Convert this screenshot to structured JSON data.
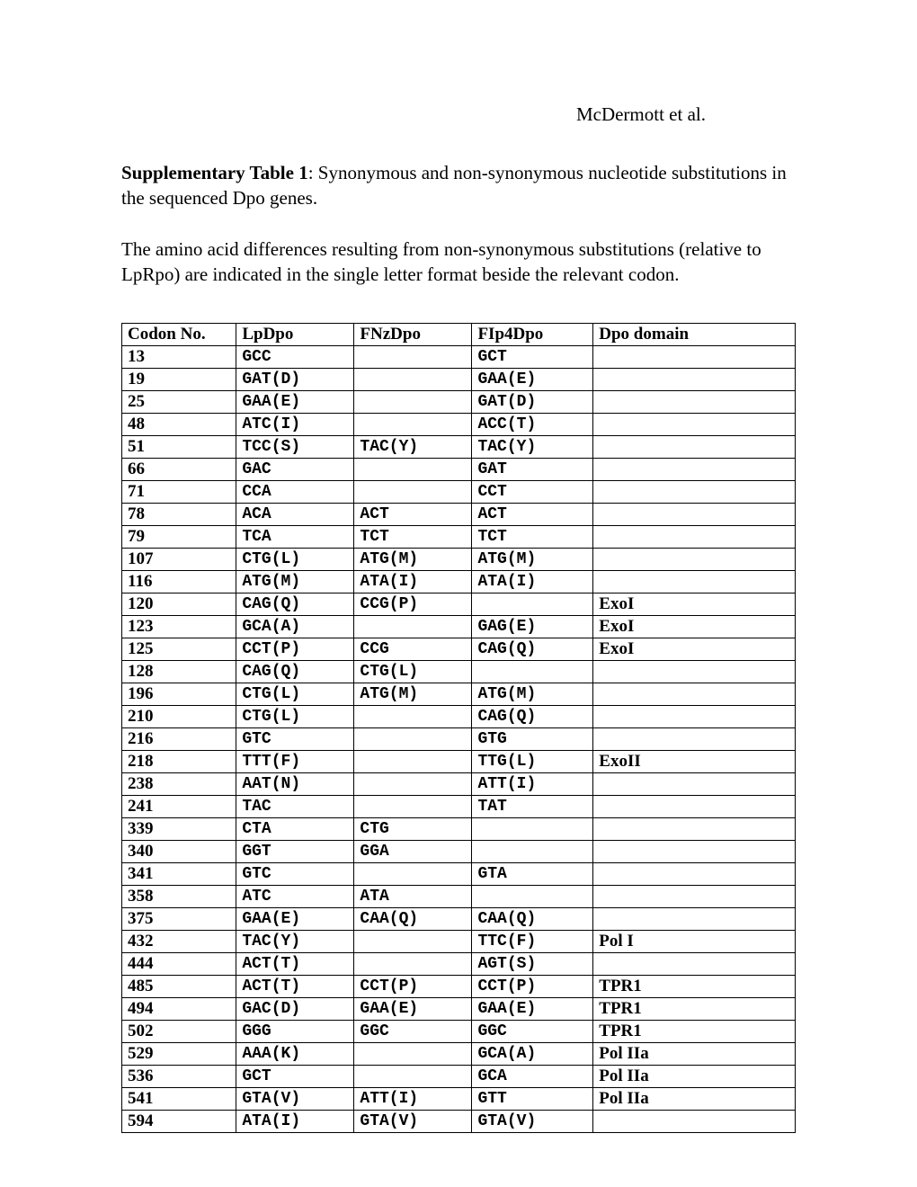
{
  "header": "McDermott et al.",
  "title_bold": "Supplementary Table 1",
  "title_rest": ": Synonymous and non-synonymous nucleotide substitutions in the sequenced Dpo genes.",
  "description": "The amino acid differences resulting from non-synonymous substitutions (relative to LpRpo) are indicated in the single letter format beside the relevant codon.",
  "table": {
    "columns": [
      "Codon No.",
      "LpDpo",
      "FNzDpo",
      "FIp4Dpo",
      "Dpo domain"
    ],
    "rows": [
      {
        "codon": "13",
        "lp": "GCC",
        "fnz": "",
        "fip4": "GCT",
        "domain": ""
      },
      {
        "codon": "19",
        "lp": "GAT(D)",
        "fnz": "",
        "fip4": "GAA(E)",
        "domain": ""
      },
      {
        "codon": "25",
        "lp": "GAA(E)",
        "fnz": "",
        "fip4": "GAT(D)",
        "domain": ""
      },
      {
        "codon": "48",
        "lp": "ATC(I)",
        "fnz": "",
        "fip4": "ACC(T)",
        "domain": ""
      },
      {
        "codon": "51",
        "lp": "TCC(S)",
        "fnz": "TAC(Y)",
        "fip4": "TAC(Y)",
        "domain": ""
      },
      {
        "codon": "66",
        "lp": "GAC",
        "fnz": "",
        "fip4": "GAT",
        "domain": ""
      },
      {
        "codon": "71",
        "lp": "CCA",
        "fnz": "",
        "fip4": "CCT",
        "domain": ""
      },
      {
        "codon": "78",
        "lp": "ACA",
        "fnz": "ACT",
        "fip4": "ACT",
        "domain": ""
      },
      {
        "codon": "79",
        "lp": "TCA",
        "fnz": "TCT",
        "fip4": "TCT",
        "domain": ""
      },
      {
        "codon": "107",
        "lp": "CTG(L)",
        "fnz": "ATG(M)",
        "fip4": "ATG(M)",
        "domain": ""
      },
      {
        "codon": "116",
        "lp": "ATG(M)",
        "fnz": "ATA(I)",
        "fip4": "ATA(I)",
        "domain": ""
      },
      {
        "codon": "120",
        "lp": "CAG(Q)",
        "fnz": "CCG(P)",
        "fip4": "",
        "domain": "ExoI"
      },
      {
        "codon": "123",
        "lp": "GCA(A)",
        "fnz": "",
        "fip4": "GAG(E)",
        "domain": "ExoI"
      },
      {
        "codon": "125",
        "lp": "CCT(P)",
        "fnz": "CCG",
        "fip4": "CAG(Q)",
        "domain": "ExoI"
      },
      {
        "codon": "128",
        "lp": "CAG(Q)",
        "fnz": "CTG(L)",
        "fip4": "",
        "domain": ""
      },
      {
        "codon": "196",
        "lp": "CTG(L)",
        "fnz": "ATG(M)",
        "fip4": "ATG(M)",
        "domain": ""
      },
      {
        "codon": "210",
        "lp": "CTG(L)",
        "fnz": "",
        "fip4": "CAG(Q)",
        "domain": ""
      },
      {
        "codon": "216",
        "lp": "GTC",
        "fnz": "",
        "fip4": "GTG",
        "domain": ""
      },
      {
        "codon": "218",
        "lp": "TTT(F)",
        "fnz": "",
        "fip4": "TTG(L)",
        "domain": "ExoII"
      },
      {
        "codon": "238",
        "lp": "AAT(N)",
        "fnz": "",
        "fip4": "ATT(I)",
        "domain": ""
      },
      {
        "codon": "241",
        "lp": "TAC",
        "fnz": "",
        "fip4": "TAT",
        "domain": ""
      },
      {
        "codon": "339",
        "lp": "CTA",
        "fnz": "CTG",
        "fip4": "",
        "domain": ""
      },
      {
        "codon": "340",
        "lp": "GGT",
        "fnz": "GGA",
        "fip4": "",
        "domain": ""
      },
      {
        "codon": "341",
        "lp": "GTC",
        "fnz": "",
        "fip4": "GTA",
        "domain": ""
      },
      {
        "codon": "358",
        "lp": "ATC",
        "fnz": "ATA",
        "fip4": "",
        "domain": ""
      },
      {
        "codon": "375",
        "lp": "GAA(E)",
        "fnz": "CAA(Q)",
        "fip4": "CAA(Q)",
        "domain": ""
      },
      {
        "codon": "432",
        "lp": "TAC(Y)",
        "fnz": "",
        "fip4": "TTC(F)",
        "domain": "Pol I"
      },
      {
        "codon": "444",
        "lp": "ACT(T)",
        "fnz": "",
        "fip4": "AGT(S)",
        "domain": ""
      },
      {
        "codon": "485",
        "lp": "ACT(T)",
        "fnz": "CCT(P)",
        "fip4": "CCT(P)",
        "domain": "TPR1"
      },
      {
        "codon": "494",
        "lp": "GAC(D)",
        "fnz": "GAA(E)",
        "fip4": "GAA(E)",
        "domain": "TPR1"
      },
      {
        "codon": "502",
        "lp": "GGG",
        "fnz": "GGC",
        "fip4": "GGC",
        "domain": "TPR1"
      },
      {
        "codon": "529",
        "lp": "AAA(K)",
        "fnz": "",
        "fip4": "GCA(A)",
        "domain": "Pol IIa"
      },
      {
        "codon": "536",
        "lp": "GCT",
        "fnz": "",
        "fip4": "GCA",
        "domain": "Pol IIa"
      },
      {
        "codon": "541",
        "lp": "GTA(V)",
        "fnz": "ATT(I)",
        "fip4": "GTT",
        "domain": "Pol IIa"
      },
      {
        "codon": "594",
        "lp": "ATA(I)",
        "fnz": "GTA(V)",
        "fip4": "GTA(V)",
        "domain": ""
      }
    ]
  }
}
